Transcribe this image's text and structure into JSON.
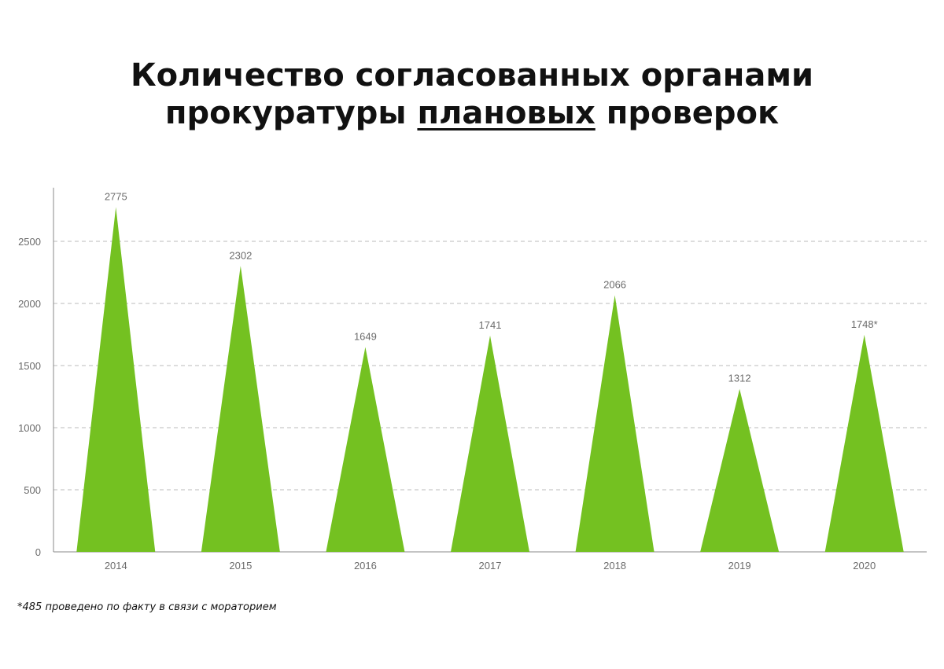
{
  "title": {
    "line1": "Количество согласованных органами",
    "line2_before": "прокуратуры ",
    "line2_underlined": "плановых",
    "line2_after": " проверок"
  },
  "footnote": "*485 проведено по факту в связи с мораторием",
  "colors": {
    "bar": "#74c121",
    "axis": "#888888",
    "grid": "#bbbbbb",
    "label": "#6b6b6b"
  },
  "chart_data": {
    "type": "bar",
    "mark_shape": "triangle",
    "categories": [
      "2014",
      "2015",
      "2016",
      "2017",
      "2018",
      "2019",
      "2020"
    ],
    "values": [
      2775,
      2302,
      1649,
      1741,
      2066,
      1312,
      1748
    ],
    "data_labels": [
      "2775",
      "2302",
      "1649",
      "1741",
      "2066",
      "1312",
      "1748*"
    ],
    "yticks": [
      0,
      500,
      1000,
      1500,
      2000,
      2500
    ],
    "ylim": [
      0,
      2900
    ],
    "grid": true,
    "legend": "none"
  }
}
